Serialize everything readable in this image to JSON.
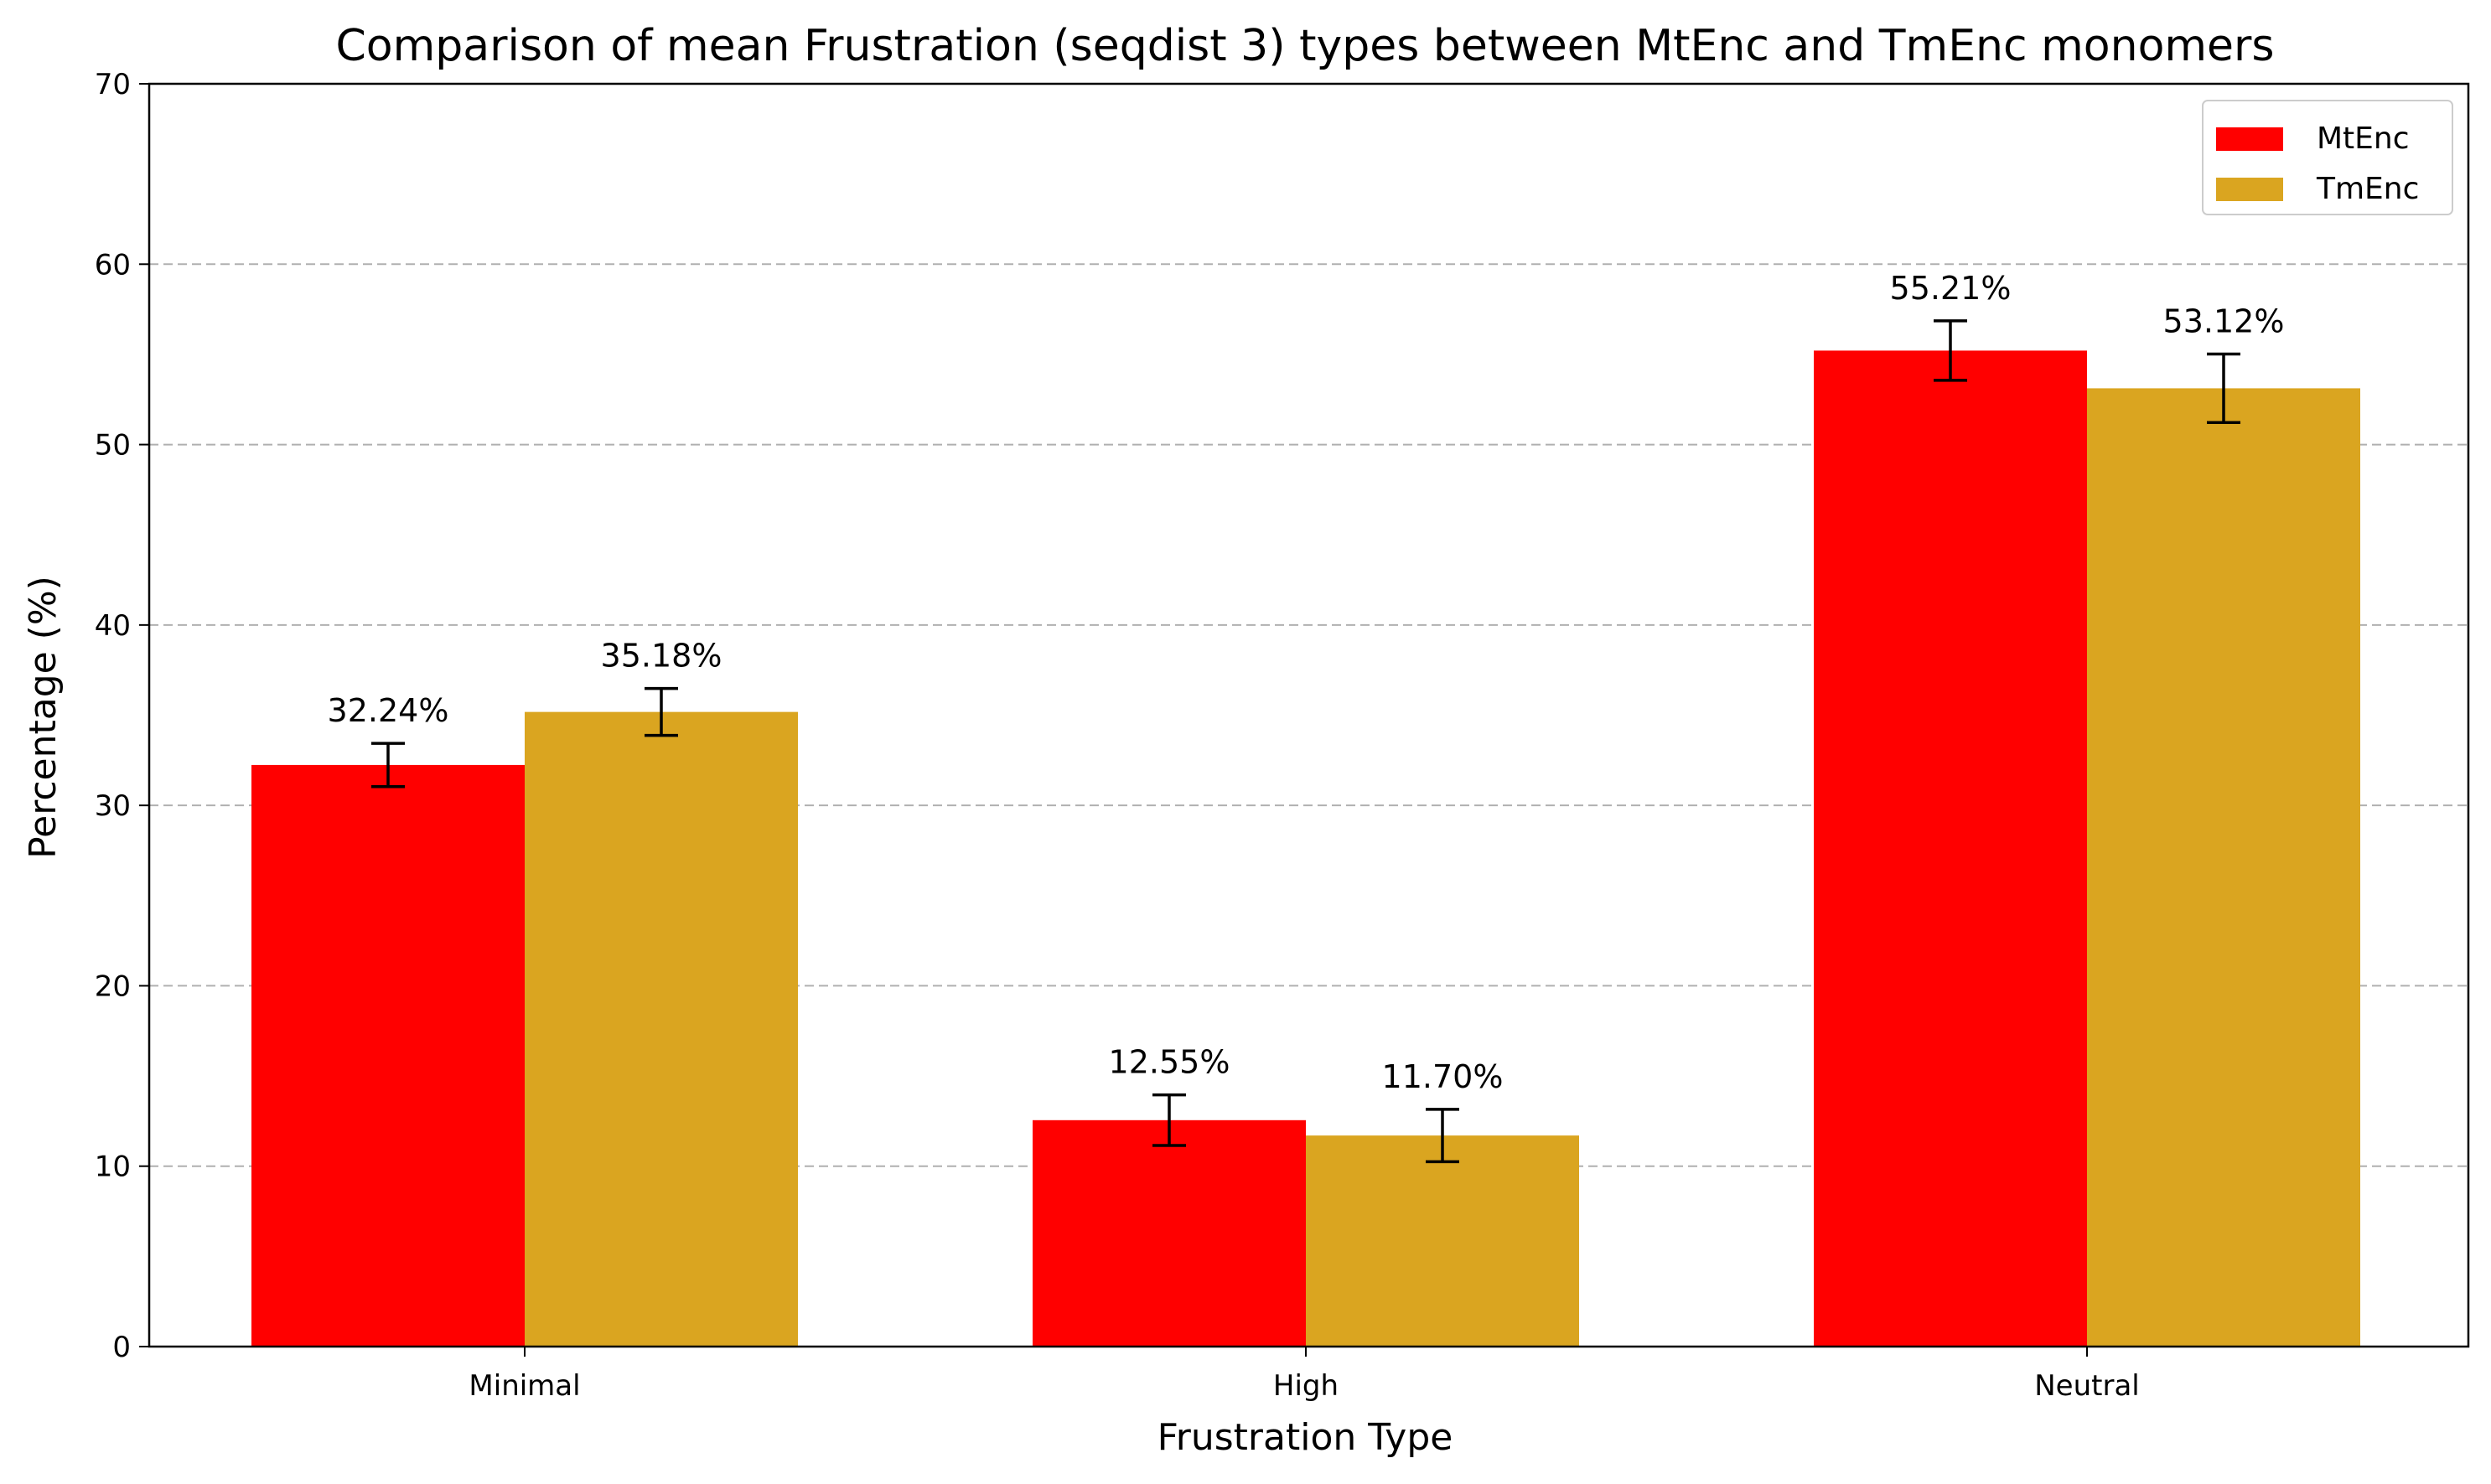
{
  "chart_data": {
    "type": "bar",
    "title": "Comparison of mean Frustration (seqdist 3) types between MtEnc and TmEnc monomers",
    "xlabel": "Frustration Type",
    "ylabel": "Percentage (%)",
    "categories": [
      "Minimal",
      "High",
      "Neutral"
    ],
    "ylim": [
      0,
      70
    ],
    "yticks": [
      0,
      10,
      20,
      30,
      40,
      50,
      60,
      70
    ],
    "grid": "horizontal dashed",
    "legend_position": "top-right",
    "series": [
      {
        "name": "MtEnc",
        "color": "#ff0000",
        "values": [
          32.24,
          12.55,
          55.21
        ],
        "errors": [
          1.2,
          1.4,
          1.65
        ],
        "labels": [
          "32.24%",
          "12.55%",
          "55.21%"
        ]
      },
      {
        "name": "TmEnc",
        "color": "#daa520",
        "values": [
          35.18,
          11.7,
          53.12
        ],
        "errors": [
          1.3,
          1.45,
          1.9
        ],
        "labels": [
          "35.18%",
          "11.70%",
          "53.12%"
        ]
      }
    ]
  }
}
